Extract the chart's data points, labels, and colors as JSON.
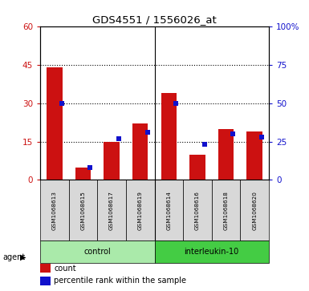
{
  "title": "GDS4551 / 1556026_at",
  "samples": [
    "GSM1068613",
    "GSM1068615",
    "GSM1068617",
    "GSM1068619",
    "GSM1068614",
    "GSM1068616",
    "GSM1068618",
    "GSM1068620"
  ],
  "counts": [
    44,
    5,
    15,
    22,
    34,
    10,
    20,
    19
  ],
  "percentile_ranks": [
    50,
    8,
    27,
    31,
    50,
    23,
    30,
    28
  ],
  "groups": [
    {
      "label": "control",
      "indices": [
        0,
        1,
        2,
        3
      ],
      "color": "#aaeaaa"
    },
    {
      "label": "interleukin-10",
      "indices": [
        4,
        5,
        6,
        7
      ],
      "color": "#44cc44"
    }
  ],
  "ylim_left": [
    0,
    60
  ],
  "ylim_right": [
    0,
    100
  ],
  "yticks_left": [
    0,
    15,
    30,
    45,
    60
  ],
  "ytick_labels_left": [
    "0",
    "15",
    "30",
    "45",
    "60"
  ],
  "yticks_right": [
    0,
    25,
    50,
    75,
    100
  ],
  "ytick_labels_right": [
    "0",
    "25",
    "50",
    "75",
    "100%"
  ],
  "bar_color_red": "#cc1111",
  "bar_color_blue": "#1111cc",
  "bar_width": 0.55,
  "blue_square_size": 0.18,
  "bg_color": "#d8d8d8",
  "grid_color": "black"
}
